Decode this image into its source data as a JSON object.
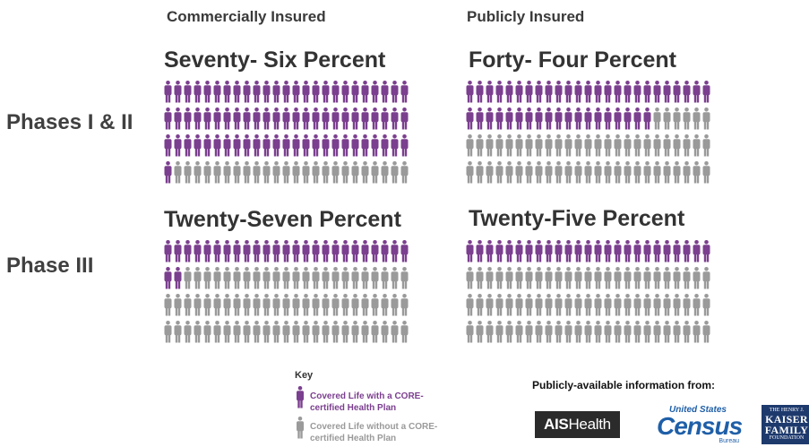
{
  "headers": {
    "commercial": "Commercially  Insured",
    "public": "Publicly  Insured"
  },
  "rows": {
    "phase12": "Phases I & II",
    "phase3": "Phase III"
  },
  "colors": {
    "covered": "#7b3f8f",
    "not_covered": "#9a9a9a"
  },
  "chart_data": [
    {
      "type": "pictogram",
      "segment": "Commercially Insured",
      "phase": "Phases I & II",
      "title": "Seventy- Six Percent",
      "percent": 76,
      "rows": 4,
      "cols": 25
    },
    {
      "type": "pictogram",
      "segment": "Publicly Insured",
      "phase": "Phases I & II",
      "title": "Forty- Four Percent",
      "percent": 44,
      "rows": 4,
      "cols": 25
    },
    {
      "type": "pictogram",
      "segment": "Commercially Insured",
      "phase": "Phase III",
      "title": "Twenty-Seven Percent",
      "percent": 27,
      "rows": 4,
      "cols": 25
    },
    {
      "type": "pictogram",
      "segment": "Publicly Insured",
      "phase": "Phase III",
      "title": "Twenty-Five Percent",
      "percent": 25,
      "rows": 4,
      "cols": 25
    }
  ],
  "key": {
    "title": "Key",
    "covered_label": "Covered Life with a CORE-certified Health Plan",
    "not_covered_label": "Covered Life without a CORE-certified Health Plan"
  },
  "sources": {
    "title": "Publicly-available information from:",
    "ais_bold": "AIS",
    "ais_light": "Health",
    "census_top": "United States",
    "census_main": "Census",
    "census_bureau": "Bureau",
    "kff_top": "THE HENRY J.",
    "kff_line1": "KAISER",
    "kff_line2": "FAMILY",
    "kff_bottom": "FOUNDATION"
  }
}
